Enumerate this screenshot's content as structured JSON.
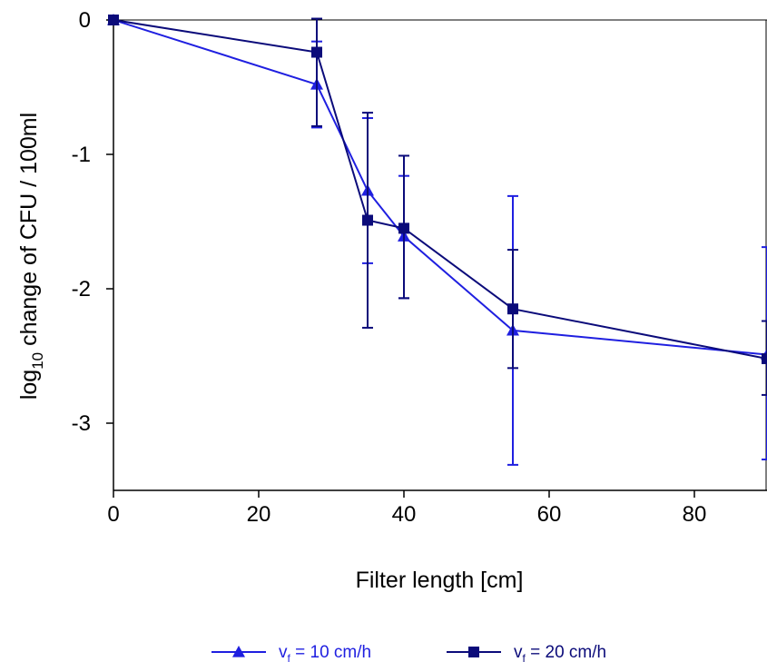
{
  "chart_data": {
    "type": "line",
    "xlabel": "Filter length [cm]",
    "ylabel_main": "log",
    "ylabel_sub": "10",
    "ylabel_rest": " change of CFU / 100ml",
    "xlim": [
      0,
      90
    ],
    "ylim": [
      -3.5,
      0
    ],
    "xticks": [
      0,
      20,
      40,
      60,
      80
    ],
    "xtick_labels": [
      "0",
      "20",
      "40",
      "60",
      "80"
    ],
    "yticks": [
      0,
      -1,
      -2,
      -3
    ],
    "ytick_labels": [
      "0",
      "-1",
      "-2",
      "-3"
    ],
    "grid": false,
    "legend_position": "bottom",
    "series": [
      {
        "name": "v = 10 cm/h",
        "legend_v": "v",
        "legend_sub": "f",
        "legend_rest": " = 10 cm/h",
        "marker": "triangle",
        "color": "#1f1fe0",
        "x": [
          0,
          28,
          35,
          40,
          55,
          90
        ],
        "y": [
          0,
          -0.48,
          -1.27,
          -1.61,
          -2.31,
          -2.49
        ],
        "err_low": [
          0,
          0.32,
          0.54,
          0.46,
          1.0,
          0.78
        ],
        "err_high": [
          0,
          0.32,
          0.54,
          0.45,
          1.0,
          0.8
        ]
      },
      {
        "name": "v = 20 cm/h",
        "legend_v": "v",
        "legend_sub": "f",
        "legend_rest": " = 20 cm/h",
        "marker": "square",
        "color": "#0b0b7a",
        "x": [
          0,
          28,
          35,
          40,
          55,
          90
        ],
        "y": [
          0,
          -0.24,
          -1.49,
          -1.55,
          -2.15,
          -2.52
        ],
        "err_low": [
          0,
          0.55,
          0.8,
          0.52,
          0.44,
          0.27
        ],
        "err_high": [
          0,
          0.25,
          0.8,
          0.54,
          0.44,
          0.28
        ]
      }
    ]
  }
}
